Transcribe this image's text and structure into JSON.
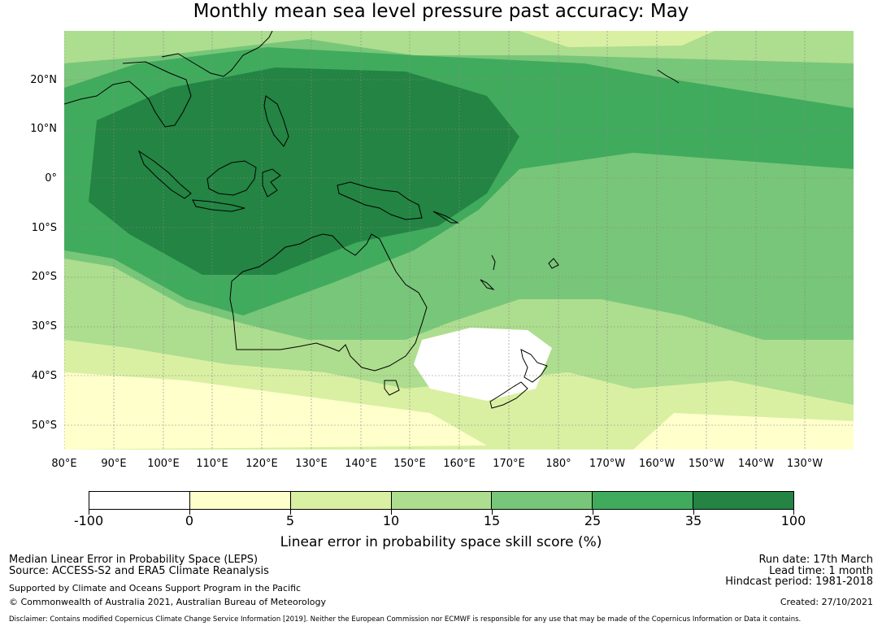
{
  "title": "Monthly mean sea level pressure past accuracy: May",
  "map": {
    "lat_labels": [
      "20°N",
      "10°N",
      "0°",
      "10°S",
      "20°S",
      "30°S",
      "40°S",
      "50°S"
    ],
    "lon_labels": [
      "80°E",
      "90°E",
      "100°E",
      "110°E",
      "120°E",
      "130°E",
      "140°E",
      "150°E",
      "160°E",
      "170°E",
      "180°",
      "170°W",
      "160°W",
      "150°W",
      "140°W",
      "130°W"
    ],
    "region": "Asia-Pacific: Australia, Indonesia, New Zealand, western Pacific Ocean"
  },
  "colorbar": {
    "tick_labels": [
      "-100",
      "0",
      "5",
      "10",
      "15",
      "25",
      "35",
      "100"
    ],
    "colors": [
      "#ffffff",
      "#ffffcc",
      "#d9f0a3",
      "#addd8e",
      "#78c679",
      "#41ab5d",
      "#238443"
    ],
    "label": "Linear error in probability space skill score (%)"
  },
  "footer": {
    "metric": "Median Linear Error in Probability Space (LEPS)",
    "source": "Source: ACCESS-S2 and ERA5 Climate Reanalysis",
    "support": "Supported by Climate and Oceans Support Program in the Pacific",
    "copyright": "© Commonwealth of Australia 2021, Australian Bureau of Meteorology",
    "run_date": "Run date: 17th March",
    "lead_time": "Lead time: 1 month",
    "hindcast": "Hindcast period: 1981-2018",
    "created": "Created: 27/10/2021",
    "disclaimer": "Disclaimer: Contains modified Copernicus Climate Change Service Information [2019]. Neither the European Commission nor ECMWF is responsible for any use that may be made of the Copernicus Information or Data it contains."
  }
}
